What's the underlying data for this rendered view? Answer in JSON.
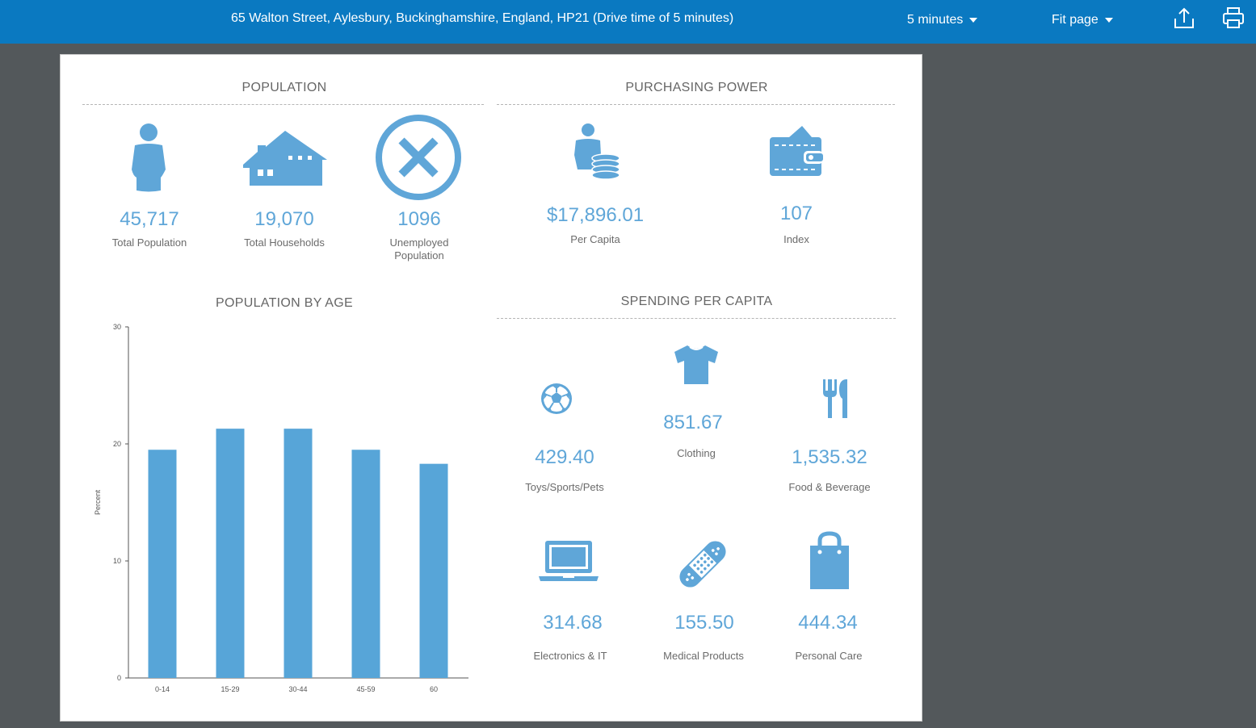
{
  "header": {
    "title": "65 Walton Street, Aylesbury, Buckinghamshire, England, HP21 (Drive time of 5 minutes)",
    "time_dropdown": "5 minutes",
    "zoom_dropdown": "Fit page",
    "color": "#0a79c1"
  },
  "accent_color": "#5fa6d8",
  "population": {
    "title": "POPULATION",
    "items": [
      {
        "value": "45,717",
        "label": "Total Population",
        "icon": "person-icon"
      },
      {
        "value": "19,070",
        "label": "Total Households",
        "icon": "house-icon"
      },
      {
        "value": "1096",
        "label": "Unemployed Population",
        "icon": "x-circle-icon"
      }
    ]
  },
  "purchasing": {
    "title": "PURCHASING POWER",
    "items": [
      {
        "value": "$17,896.01",
        "label": "Per Capita",
        "icon": "person-coins-icon"
      },
      {
        "value": "107",
        "label": "Index",
        "icon": "wallet-icon"
      }
    ]
  },
  "age_chart": {
    "title": "POPULATION BY AGE"
  },
  "chart_data": {
    "type": "bar",
    "title": "POPULATION BY AGE",
    "categories": [
      "0-14",
      "15-29",
      "30-44",
      "45-59",
      "60"
    ],
    "values": [
      19.5,
      21.3,
      21.3,
      19.5,
      18.3
    ],
    "xlabel": "",
    "ylabel": "Percent",
    "ylim": [
      0,
      30
    ],
    "yticks": [
      0,
      10,
      20,
      30
    ],
    "grid": false,
    "color": "#57a5d8"
  },
  "spending": {
    "title": "SPENDING PER CAPITA",
    "items": [
      {
        "value": "429.40",
        "label": "Toys/Sports/Pets",
        "icon": "soccer-ball-icon"
      },
      {
        "value": "851.67",
        "label": "Clothing",
        "icon": "tshirt-icon"
      },
      {
        "value": "1,535.32",
        "label": "Food & Beverage",
        "icon": "fork-knife-icon"
      },
      {
        "value": "314.68",
        "label": "Electronics & IT",
        "icon": "laptop-icon"
      },
      {
        "value": "155.50",
        "label": "Medical Products",
        "icon": "bandage-icon"
      },
      {
        "value": "444.34",
        "label": "Personal Care",
        "icon": "shopping-bag-icon"
      }
    ]
  }
}
